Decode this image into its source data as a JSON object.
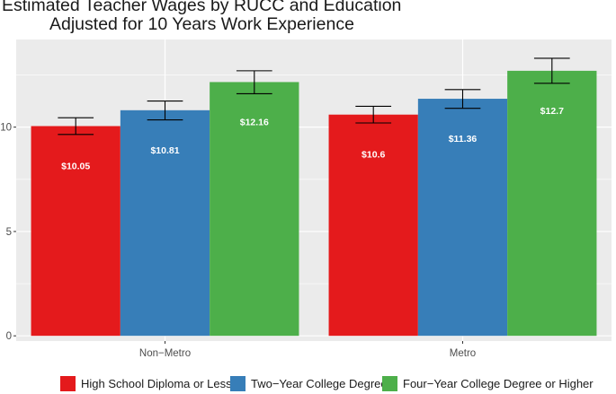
{
  "chart_data": {
    "type": "bar",
    "title": "Estimated Teacher Wages by RUCC and Education",
    "subtitle": "Adjusted for 10 Years Work Experience",
    "xlabel": "",
    "ylabel": "",
    "categories": [
      "Non−Metro",
      "Metro"
    ],
    "series": [
      {
        "name": "High School Diploma or Less",
        "color": "#E41A1C",
        "values": [
          10.05,
          10.6
        ],
        "labels": [
          "$10.05",
          "$10.6"
        ],
        "error_low": [
          9.65,
          10.2
        ],
        "error_high": [
          10.45,
          11.0
        ]
      },
      {
        "name": "Two−Year College Degree",
        "color": "#377EB8",
        "values": [
          10.81,
          11.36
        ],
        "labels": [
          "$10.81",
          "$11.36"
        ],
        "error_low": [
          10.35,
          10.9
        ],
        "error_high": [
          11.25,
          11.8
        ]
      },
      {
        "name": "Four−Year College Degree or Higher",
        "color": "#4DAF4A",
        "values": [
          12.16,
          12.7
        ],
        "labels": [
          "$12.16",
          "$12.7"
        ],
        "error_low": [
          11.6,
          12.1
        ],
        "error_high": [
          12.7,
          13.3
        ]
      }
    ],
    "yticks": [
      0,
      5,
      10
    ],
    "ylim": [
      -0.25,
      14.2
    ],
    "grid": true,
    "legend_position": "bottom",
    "panel_background": "#EBEBEB"
  }
}
